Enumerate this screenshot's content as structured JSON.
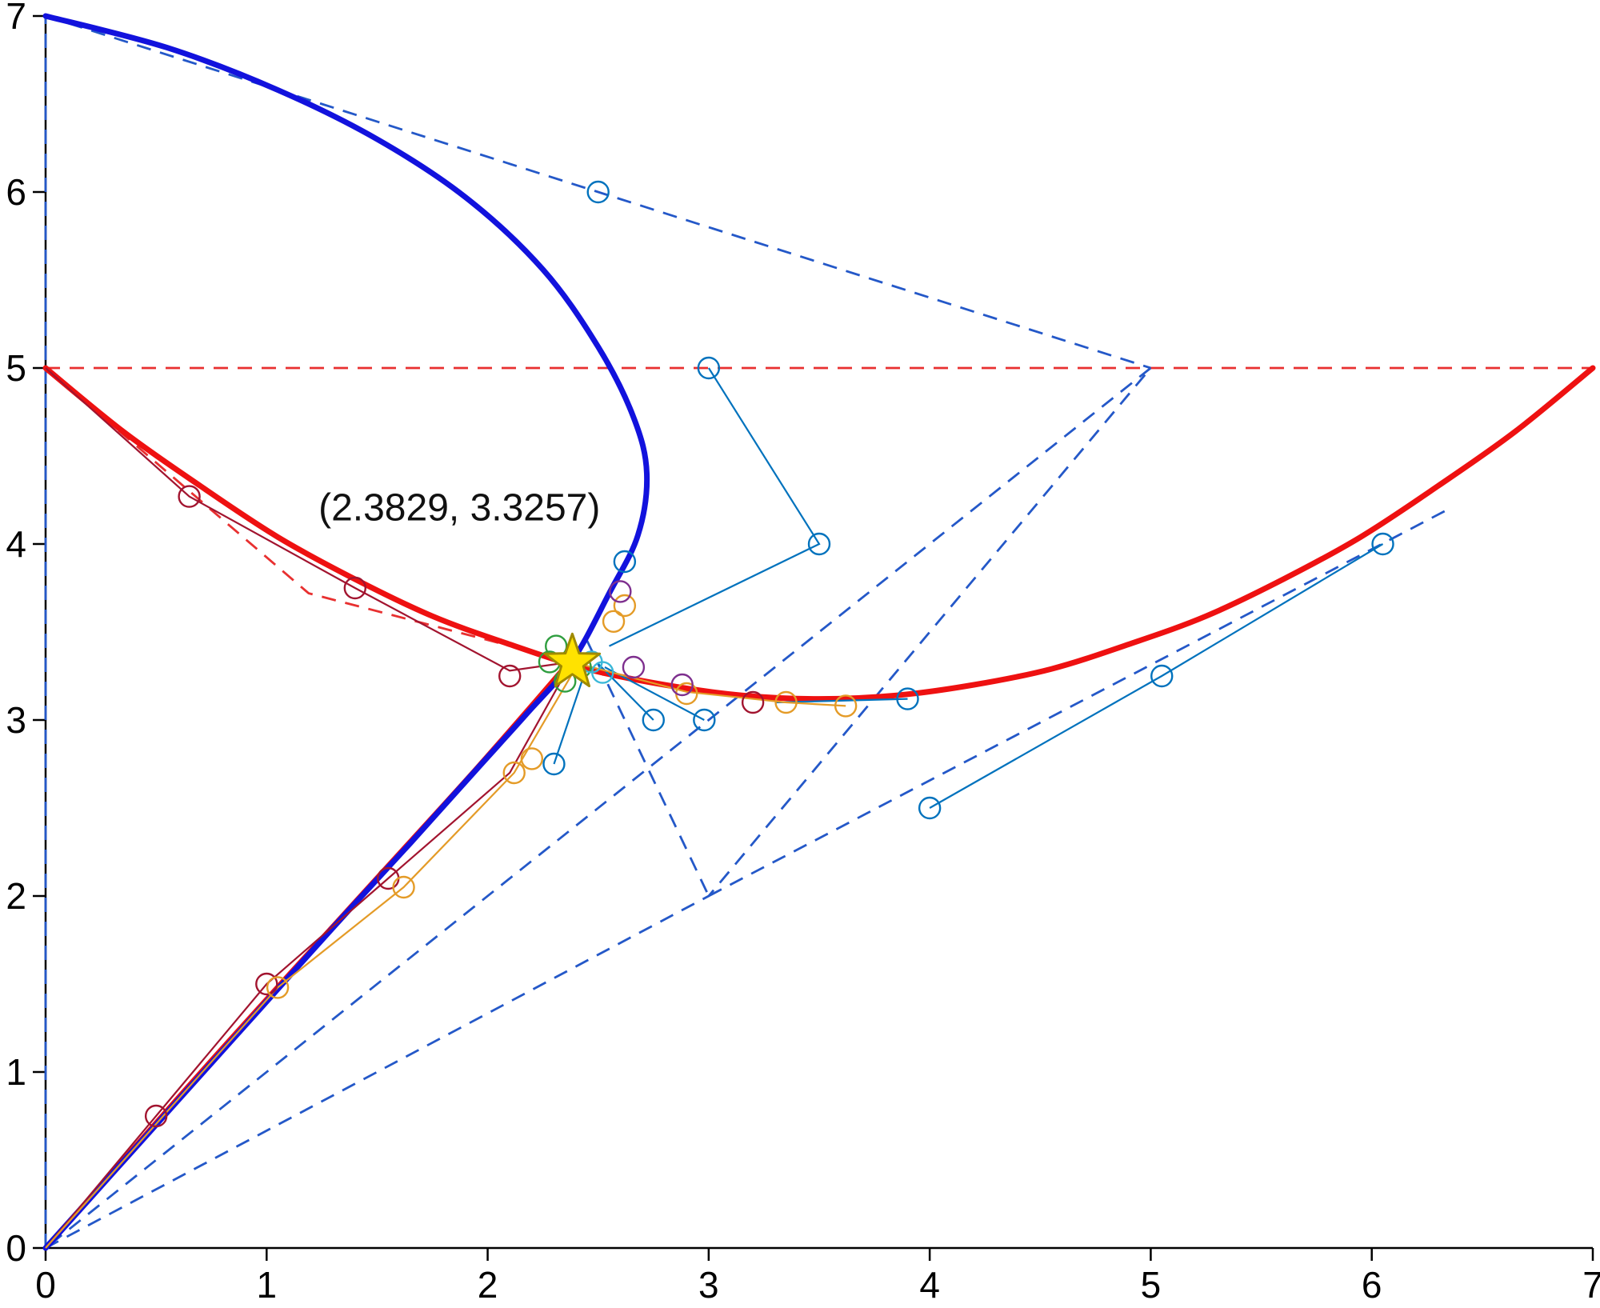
{
  "figure": {
    "background": "#ffffff"
  },
  "chart_data": {
    "type": "line",
    "title": "",
    "xlabel": "",
    "ylabel": "",
    "xlim": [
      0,
      7
    ],
    "ylim": [
      0,
      7
    ],
    "grid": false,
    "x_ticks": [
      "0",
      "1",
      "2",
      "3",
      "4",
      "5",
      "6",
      "7"
    ],
    "y_ticks": [
      "0",
      "1",
      "2",
      "3",
      "4",
      "5",
      "6",
      "7"
    ],
    "axis_color": "#000000",
    "tick_font_px": 46,
    "intersection": {
      "x": 2.3829,
      "y": 3.3257,
      "label": "(2.3829, 3.3257)",
      "marker": "star",
      "fill": "#FFE200",
      "edge": "#A08A00"
    },
    "palette": {
      "blue": "#0072BD",
      "orange": "#E49B27",
      "darkred": "#A2142F",
      "green": "#2F9E3F",
      "purple": "#7E2F8E",
      "cyan": "#3BB8D8",
      "curve_blue": "#1212DD",
      "curve_red": "#EE1111",
      "dash_blue": "#2458C8",
      "dash_red": "#E83030"
    },
    "curves": [
      {
        "name": "red-lower-segment",
        "color": "curve_red",
        "width": 5,
        "smooth": true,
        "points": [
          [
            0,
            0
          ],
          [
            0.7,
            1.0
          ],
          [
            1.4,
            1.97
          ],
          [
            1.95,
            2.73
          ],
          [
            2.38,
            3.35
          ]
        ]
      },
      {
        "name": "blue-bezier-curve",
        "color": "curve_blue",
        "width": 7,
        "smooth": true,
        "points": [
          [
            0,
            7
          ],
          [
            0.55,
            6.82
          ],
          [
            1.05,
            6.58
          ],
          [
            1.5,
            6.3
          ],
          [
            1.9,
            5.97
          ],
          [
            2.25,
            5.56
          ],
          [
            2.5,
            5.12
          ],
          [
            2.66,
            4.72
          ],
          [
            2.72,
            4.4
          ],
          [
            2.68,
            4.05
          ],
          [
            2.55,
            3.72
          ],
          [
            2.38,
            3.33
          ],
          [
            2.18,
            3.04
          ],
          [
            1.95,
            2.72
          ],
          [
            1.65,
            2.3
          ],
          [
            1.3,
            1.82
          ],
          [
            0.95,
            1.33
          ],
          [
            0.6,
            0.84
          ],
          [
            0.3,
            0.42
          ],
          [
            0,
            0
          ]
        ]
      },
      {
        "name": "red-bezier-curve",
        "color": "curve_red",
        "width": 7,
        "smooth": true,
        "points": [
          [
            0,
            5
          ],
          [
            0.35,
            4.64
          ],
          [
            0.7,
            4.33
          ],
          [
            1.05,
            4.04
          ],
          [
            1.4,
            3.8
          ],
          [
            1.75,
            3.59
          ],
          [
            2.1,
            3.43
          ],
          [
            2.45,
            3.29
          ],
          [
            2.8,
            3.2
          ],
          [
            3.15,
            3.14
          ],
          [
            3.5,
            3.12
          ],
          [
            3.85,
            3.14
          ],
          [
            4.2,
            3.2
          ],
          [
            4.55,
            3.29
          ],
          [
            4.9,
            3.43
          ],
          [
            5.25,
            3.59
          ],
          [
            5.6,
            3.8
          ],
          [
            5.95,
            4.04
          ],
          [
            6.3,
            4.33
          ],
          [
            6.65,
            4.64
          ],
          [
            7,
            5
          ]
        ]
      }
    ],
    "dashed_lines": [
      {
        "name": "red-chord-horizontal",
        "color": "dash_red",
        "points": [
          [
            0,
            5
          ],
          [
            7,
            5
          ]
        ]
      },
      {
        "name": "red-control-polygon-left",
        "color": "dash_red",
        "points": [
          [
            0,
            5
          ],
          [
            1.19,
            3.72
          ],
          [
            2.38,
            3.33
          ]
        ]
      },
      {
        "name": "red-chord-lower",
        "color": "dash_red",
        "points": [
          [
            0,
            0
          ],
          [
            2.38,
            3.33
          ]
        ]
      },
      {
        "name": "blue-control-upper",
        "color": "dash_blue",
        "points": [
          [
            0,
            7
          ],
          [
            5,
            5
          ]
        ]
      },
      {
        "name": "blue-control-lower",
        "color": "dash_blue",
        "points": [
          [
            5,
            5
          ],
          [
            0,
            0
          ]
        ]
      },
      {
        "name": "blue-subdivided-polygon",
        "color": "dash_blue",
        "points": [
          [
            0,
            0
          ],
          [
            3,
            2
          ],
          [
            5,
            5
          ]
        ]
      },
      {
        "name": "blue-secant-right",
        "color": "dash_blue",
        "points": [
          [
            3,
            2
          ],
          [
            6.35,
            4.2
          ]
        ]
      },
      {
        "name": "blue-secant-star",
        "color": "dash_blue",
        "points": [
          [
            2.45,
            3.45
          ],
          [
            3,
            2
          ]
        ]
      },
      {
        "name": "blue-axis-overlay",
        "color": "dash_blue",
        "points": [
          [
            0,
            0
          ],
          [
            0,
            7
          ]
        ]
      }
    ],
    "thin_lines": [
      {
        "name": "blue-iteration-path-1",
        "color": "blue",
        "points": [
          [
            3.0,
            5.0
          ],
          [
            3.5,
            4.0
          ],
          [
            2.55,
            3.42
          ]
        ]
      },
      {
        "name": "blue-iteration-path-2",
        "color": "blue",
        "points": [
          [
            6.05,
            4.0
          ],
          [
            5.05,
            3.25
          ],
          [
            4.0,
            2.5
          ]
        ]
      },
      {
        "name": "blue-iteration-path-3",
        "color": "blue",
        "points": [
          [
            2.3,
            2.75
          ],
          [
            2.44,
            3.27
          ]
        ]
      },
      {
        "name": "blue-iteration-path-4",
        "color": "blue",
        "points": [
          [
            2.75,
            3.0
          ],
          [
            2.5,
            3.32
          ]
        ]
      },
      {
        "name": "blue-iteration-path-5",
        "color": "blue",
        "points": [
          [
            2.98,
            3.0
          ],
          [
            2.53,
            3.3
          ]
        ]
      },
      {
        "name": "blue-iteration-path-6",
        "color": "blue",
        "points": [
          [
            3.9,
            3.12
          ],
          [
            3.3,
            3.1
          ]
        ]
      },
      {
        "name": "darkred-iteration-path-1",
        "color": "darkred",
        "points": [
          [
            0,
            0
          ],
          [
            0.5,
            0.75
          ],
          [
            1.0,
            1.5
          ],
          [
            1.55,
            2.1
          ],
          [
            2.1,
            2.7
          ],
          [
            2.38,
            3.33
          ]
        ]
      },
      {
        "name": "darkred-iteration-path-2",
        "color": "darkred",
        "points": [
          [
            0,
            5
          ],
          [
            0.65,
            4.27
          ],
          [
            1.4,
            3.75
          ],
          [
            2.1,
            3.28
          ],
          [
            2.38,
            3.33
          ]
        ]
      },
      {
        "name": "orange-iteration-path-1",
        "color": "orange",
        "points": [
          [
            2.38,
            3.33
          ],
          [
            2.9,
            3.16
          ],
          [
            3.35,
            3.1
          ],
          [
            3.62,
            3.08
          ]
        ]
      },
      {
        "name": "orange-iteration-path-2",
        "color": "orange",
        "points": [
          [
            0,
            0
          ],
          [
            1.05,
            1.48
          ],
          [
            1.62,
            2.05
          ],
          [
            2.12,
            2.7
          ],
          [
            2.4,
            3.3
          ]
        ]
      }
    ],
    "markers": [
      {
        "x": 2.5,
        "y": 6.0,
        "color": "blue"
      },
      {
        "x": 3.0,
        "y": 5.0,
        "color": "blue"
      },
      {
        "x": 3.5,
        "y": 4.0,
        "color": "blue"
      },
      {
        "x": 6.05,
        "y": 4.0,
        "color": "blue"
      },
      {
        "x": 5.05,
        "y": 3.25,
        "color": "blue"
      },
      {
        "x": 4.0,
        "y": 2.5,
        "color": "blue"
      },
      {
        "x": 2.3,
        "y": 2.75,
        "color": "blue"
      },
      {
        "x": 2.75,
        "y": 3.0,
        "color": "blue"
      },
      {
        "x": 2.98,
        "y": 3.0,
        "color": "blue"
      },
      {
        "x": 3.9,
        "y": 3.12,
        "color": "blue"
      },
      {
        "x": 2.62,
        "y": 3.9,
        "color": "blue"
      },
      {
        "x": 0.5,
        "y": 0.75,
        "color": "darkred"
      },
      {
        "x": 1.0,
        "y": 1.5,
        "color": "darkred"
      },
      {
        "x": 1.55,
        "y": 2.1,
        "color": "darkred"
      },
      {
        "x": 0.65,
        "y": 4.27,
        "color": "darkred"
      },
      {
        "x": 1.4,
        "y": 3.75,
        "color": "darkred"
      },
      {
        "x": 2.1,
        "y": 3.25,
        "color": "darkred"
      },
      {
        "x": 3.2,
        "y": 3.1,
        "color": "darkred"
      },
      {
        "x": 1.05,
        "y": 1.48,
        "color": "orange"
      },
      {
        "x": 1.62,
        "y": 2.05,
        "color": "orange"
      },
      {
        "x": 2.12,
        "y": 2.7,
        "color": "orange"
      },
      {
        "x": 2.2,
        "y": 2.78,
        "color": "orange"
      },
      {
        "x": 2.9,
        "y": 3.15,
        "color": "orange"
      },
      {
        "x": 3.35,
        "y": 3.1,
        "color": "orange"
      },
      {
        "x": 3.62,
        "y": 3.08,
        "color": "orange"
      },
      {
        "x": 2.57,
        "y": 3.56,
        "color": "orange"
      },
      {
        "x": 2.62,
        "y": 3.65,
        "color": "orange"
      },
      {
        "x": 2.6,
        "y": 3.73,
        "color": "purple"
      },
      {
        "x": 2.66,
        "y": 3.3,
        "color": "purple"
      },
      {
        "x": 2.88,
        "y": 3.2,
        "color": "purple"
      },
      {
        "x": 2.28,
        "y": 3.33,
        "color": "green"
      },
      {
        "x": 2.35,
        "y": 3.22,
        "color": "green"
      },
      {
        "x": 2.42,
        "y": 3.3,
        "color": "green"
      },
      {
        "x": 2.31,
        "y": 3.42,
        "color": "green"
      },
      {
        "x": 2.47,
        "y": 3.33,
        "color": "cyan"
      },
      {
        "x": 2.52,
        "y": 3.27,
        "color": "cyan"
      }
    ]
  }
}
